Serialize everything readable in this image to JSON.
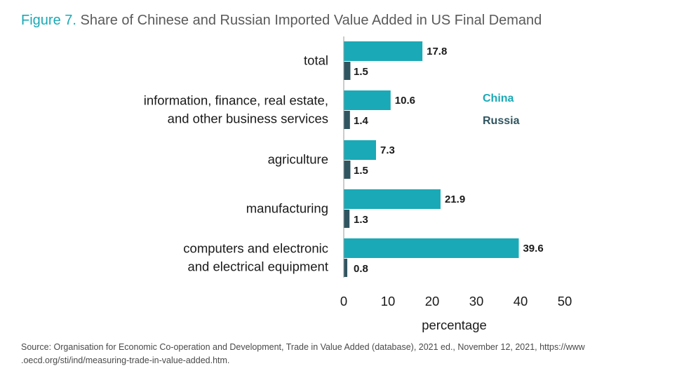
{
  "title": {
    "prefix": "Figure 7.",
    "text": "Share of Chinese and Russian Imported Value Added in US Final Demand"
  },
  "chart_data": {
    "type": "bar",
    "orientation": "horizontal",
    "categories": [
      [
        "total"
      ],
      [
        "information, finance, real estate,",
        "and other business services"
      ],
      [
        "agriculture"
      ],
      [
        "manufacturing"
      ],
      [
        "computers and electronic",
        "and electrical equipment"
      ]
    ],
    "series": [
      {
        "name": "China",
        "values": [
          17.8,
          10.6,
          7.3,
          21.9,
          39.6
        ],
        "color": "#1aa9b6"
      },
      {
        "name": "Russia",
        "values": [
          1.5,
          1.4,
          1.5,
          1.3,
          0.8
        ],
        "color": "#2f5560"
      }
    ],
    "x_ticks": [
      0,
      10,
      20,
      30,
      40,
      50
    ],
    "xlim": [
      0,
      50
    ],
    "xlabel": "percentage",
    "ylabel": "",
    "legend_placement": "right",
    "grid": false
  },
  "source": "Source: Organisation for Economic Co-operation and Development, Trade in Value Added (database), 2021 ed., November 12, 2021, https://www .oecd.org/sti/ind/measuring-trade-in-value-added.htm."
}
